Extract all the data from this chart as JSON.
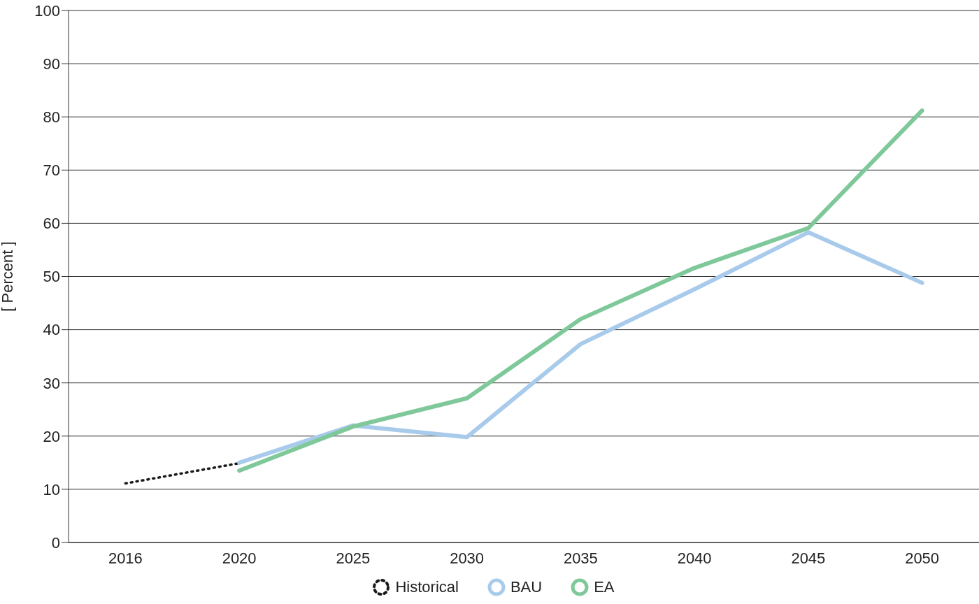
{
  "chart_data": {
    "type": "line",
    "ylabel": "[ Percent ]",
    "categories": [
      "2016",
      "2020",
      "2025",
      "2030",
      "2035",
      "2040",
      "2045",
      "2050"
    ],
    "series": [
      {
        "name": "Historical",
        "color": "#1a1a1a",
        "line_style": "dotted",
        "values": [
          11.1,
          14.9,
          null,
          null,
          null,
          null,
          null,
          null
        ]
      },
      {
        "name": "BAU",
        "color": "#a9cbeb",
        "values": [
          null,
          15,
          22,
          19.8,
          37.3,
          47.6,
          58.3,
          48.8
        ]
      },
      {
        "name": "EA",
        "color": "#7fc89a",
        "values": [
          null,
          13.5,
          21.8,
          27.1,
          42,
          51.6,
          59.1,
          81.2
        ]
      }
    ],
    "ylim": [
      0,
      100
    ],
    "yticks": [
      0,
      10,
      20,
      30,
      40,
      50,
      60,
      70,
      80,
      90,
      100
    ],
    "grid": "y",
    "legend": "bottom",
    "marker": "none",
    "line_style": "solid"
  }
}
